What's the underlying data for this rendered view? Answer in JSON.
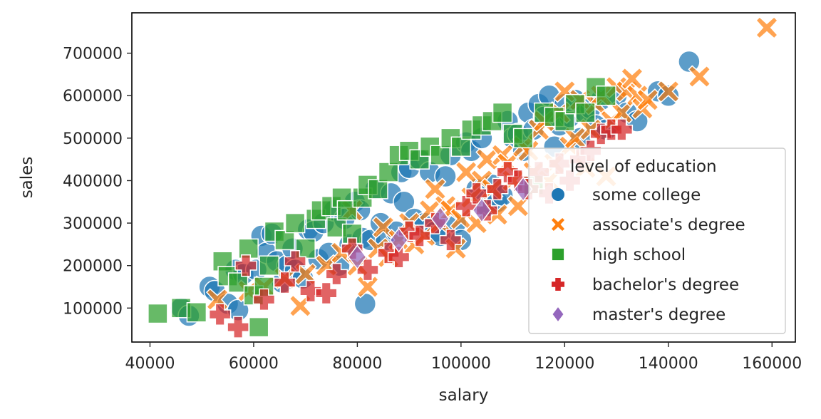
{
  "chart_data": {
    "type": "scatter",
    "xlabel": "salary",
    "ylabel": "sales",
    "xlim": [
      36500,
      164500
    ],
    "ylim": [
      20000,
      795000
    ],
    "xticks": [
      40000,
      60000,
      80000,
      100000,
      120000,
      140000,
      160000
    ],
    "yticks": [
      100000,
      200000,
      300000,
      400000,
      500000,
      600000,
      700000
    ],
    "grid": false,
    "legend": {
      "title": "level of education",
      "placement": "lower-right"
    },
    "series": [
      {
        "name": "some college",
        "color": "#1f77b4",
        "marker": "circle",
        "points": [
          [
            46000,
            100000
          ],
          [
            47500,
            82000
          ],
          [
            51500,
            150000
          ],
          [
            52500,
            140000
          ],
          [
            55000,
            110000
          ],
          [
            56500,
            190000
          ],
          [
            57000,
            95000
          ],
          [
            58000,
            180000
          ],
          [
            60500,
            190000
          ],
          [
            61500,
            270000
          ],
          [
            62500,
            230000
          ],
          [
            63500,
            275000
          ],
          [
            64500,
            210000
          ],
          [
            65500,
            160000
          ],
          [
            66500,
            200000
          ],
          [
            67500,
            240000
          ],
          [
            68000,
            190000
          ],
          [
            69500,
            170000
          ],
          [
            70500,
            285000
          ],
          [
            71500,
            280000
          ],
          [
            72500,
            215000
          ],
          [
            73500,
            300000
          ],
          [
            74500,
            230000
          ],
          [
            75500,
            330000
          ],
          [
            76500,
            200000
          ],
          [
            77500,
            310000
          ],
          [
            78500,
            250000
          ],
          [
            79500,
            350000
          ],
          [
            80500,
            330000
          ],
          [
            81000,
            265000
          ],
          [
            81500,
            110000
          ],
          [
            82500,
            260000
          ],
          [
            83500,
            380000
          ],
          [
            84500,
            300000
          ],
          [
            85500,
            260000
          ],
          [
            86500,
            370000
          ],
          [
            87500,
            280000
          ],
          [
            88500,
            420000
          ],
          [
            89000,
            350000
          ],
          [
            90000,
            430000
          ],
          [
            91000,
            310000
          ],
          [
            92000,
            450000
          ],
          [
            93000,
            300000
          ],
          [
            94000,
            420000
          ],
          [
            95000,
            280000
          ],
          [
            96000,
            270000
          ],
          [
            97000,
            410000
          ],
          [
            98000,
            460000
          ],
          [
            99000,
            300000
          ],
          [
            100000,
            260000
          ],
          [
            101000,
            490000
          ],
          [
            102000,
            470000
          ],
          [
            103000,
            380000
          ],
          [
            104000,
            500000
          ],
          [
            105000,
            340000
          ],
          [
            106000,
            390000
          ],
          [
            107000,
            350000
          ],
          [
            108000,
            365000
          ],
          [
            109000,
            540000
          ],
          [
            110000,
            500000
          ],
          [
            111000,
            510000
          ],
          [
            112000,
            470000
          ],
          [
            113000,
            560000
          ],
          [
            114000,
            520000
          ],
          [
            115000,
            580000
          ],
          [
            116000,
            550000
          ],
          [
            117000,
            600000
          ],
          [
            118000,
            480000
          ],
          [
            119000,
            530000
          ],
          [
            120000,
            580000
          ],
          [
            121000,
            550000
          ],
          [
            122000,
            590000
          ],
          [
            123000,
            500000
          ],
          [
            124000,
            560000
          ],
          [
            125000,
            570000
          ],
          [
            126000,
            530000
          ],
          [
            127000,
            590000
          ],
          [
            128000,
            520000
          ],
          [
            130000,
            600000
          ],
          [
            132000,
            560000
          ],
          [
            134000,
            540000
          ],
          [
            138000,
            610000
          ],
          [
            140000,
            600000
          ],
          [
            144000,
            680000
          ]
        ]
      },
      {
        "name": "associate's degree",
        "color": "#ff7f0e",
        "marker": "x",
        "points": [
          [
            53000,
            120000
          ],
          [
            59000,
            140000
          ],
          [
            62000,
            150000
          ],
          [
            66000,
            170000
          ],
          [
            69000,
            105000
          ],
          [
            70000,
            180000
          ],
          [
            74000,
            200000
          ],
          [
            77000,
            230000
          ],
          [
            79000,
            330000
          ],
          [
            80000,
            200000
          ],
          [
            82000,
            150000
          ],
          [
            84000,
            240000
          ],
          [
            85000,
            290000
          ],
          [
            86000,
            220000
          ],
          [
            88000,
            260000
          ],
          [
            90000,
            300000
          ],
          [
            91000,
            250000
          ],
          [
            93000,
            270000
          ],
          [
            94000,
            330000
          ],
          [
            95000,
            380000
          ],
          [
            96000,
            300000
          ],
          [
            97000,
            340000
          ],
          [
            98000,
            330000
          ],
          [
            99000,
            240000
          ],
          [
            100000,
            310000
          ],
          [
            101000,
            420000
          ],
          [
            102000,
            360000
          ],
          [
            103000,
            300000
          ],
          [
            104000,
            400000
          ],
          [
            105000,
            450000
          ],
          [
            106000,
            380000
          ],
          [
            107000,
            320000
          ],
          [
            108000,
            460000
          ],
          [
            109000,
            440000
          ],
          [
            110000,
            400000
          ],
          [
            111000,
            340000
          ],
          [
            112000,
            480000
          ],
          [
            113000,
            470000
          ],
          [
            114000,
            420000
          ],
          [
            115000,
            520000
          ],
          [
            116000,
            540000
          ],
          [
            117000,
            400000
          ],
          [
            118000,
            440000
          ],
          [
            119000,
            560000
          ],
          [
            120000,
            610000
          ],
          [
            121000,
            480000
          ],
          [
            122000,
            500000
          ],
          [
            123000,
            590000
          ],
          [
            124000,
            430000
          ],
          [
            125000,
            520000
          ],
          [
            126000,
            580000
          ],
          [
            127000,
            600000
          ],
          [
            128000,
            410000
          ],
          [
            129000,
            540000
          ],
          [
            130000,
            620000
          ],
          [
            131000,
            560000
          ],
          [
            132000,
            610000
          ],
          [
            133000,
            640000
          ],
          [
            134000,
            600000
          ],
          [
            135000,
            570000
          ],
          [
            136000,
            590000
          ],
          [
            140000,
            610000
          ],
          [
            146000,
            645000
          ],
          [
            159000,
            760000
          ]
        ]
      },
      {
        "name": "high school",
        "color": "#2ca02c",
        "marker": "square",
        "points": [
          [
            41500,
            87000
          ],
          [
            46000,
            100000
          ],
          [
            49000,
            90000
          ],
          [
            54000,
            210000
          ],
          [
            55000,
            175000
          ],
          [
            57000,
            160000
          ],
          [
            59000,
            240000
          ],
          [
            60000,
            130000
          ],
          [
            61000,
            55000
          ],
          [
            62000,
            150000
          ],
          [
            63000,
            200000
          ],
          [
            64000,
            280000
          ],
          [
            66000,
            260000
          ],
          [
            68000,
            300000
          ],
          [
            70000,
            240000
          ],
          [
            72000,
            310000
          ],
          [
            73000,
            330000
          ],
          [
            75000,
            340000
          ],
          [
            76000,
            290000
          ],
          [
            77000,
            360000
          ],
          [
            78000,
            330000
          ],
          [
            79000,
            275000
          ],
          [
            81000,
            360000
          ],
          [
            82000,
            390000
          ],
          [
            84000,
            380000
          ],
          [
            86000,
            420000
          ],
          [
            88000,
            460000
          ],
          [
            90000,
            470000
          ],
          [
            92000,
            450000
          ],
          [
            94000,
            480000
          ],
          [
            96000,
            460000
          ],
          [
            98000,
            500000
          ],
          [
            100000,
            480000
          ],
          [
            102000,
            520000
          ],
          [
            104000,
            530000
          ],
          [
            106000,
            540000
          ],
          [
            108000,
            560000
          ],
          [
            110000,
            510000
          ],
          [
            112000,
            500000
          ],
          [
            114000,
            390000
          ],
          [
            116000,
            560000
          ],
          [
            118000,
            550000
          ],
          [
            120000,
            540000
          ],
          [
            122000,
            580000
          ],
          [
            124000,
            560000
          ],
          [
            126000,
            620000
          ],
          [
            128000,
            600000
          ]
        ]
      },
      {
        "name": "bachelor's degree",
        "color": "#d62728",
        "marker": "plus",
        "points": [
          [
            53500,
            85000
          ],
          [
            57000,
            55000
          ],
          [
            58500,
            200000
          ],
          [
            62000,
            120000
          ],
          [
            66000,
            160000
          ],
          [
            68000,
            210000
          ],
          [
            71000,
            140000
          ],
          [
            74000,
            135000
          ],
          [
            76000,
            180000
          ],
          [
            79000,
            240000
          ],
          [
            82000,
            190000
          ],
          [
            86000,
            230000
          ],
          [
            88000,
            220000
          ],
          [
            90000,
            280000
          ],
          [
            92000,
            270000
          ],
          [
            95000,
            300000
          ],
          [
            98000,
            260000
          ],
          [
            101000,
            340000
          ],
          [
            103000,
            370000
          ],
          [
            105000,
            330000
          ],
          [
            107000,
            380000
          ],
          [
            109000,
            420000
          ],
          [
            111000,
            400000
          ],
          [
            113000,
            380000
          ],
          [
            115000,
            420000
          ],
          [
            117000,
            370000
          ],
          [
            119000,
            440000
          ],
          [
            121000,
            400000
          ],
          [
            123000,
            450000
          ],
          [
            125000,
            470000
          ],
          [
            127000,
            510000
          ],
          [
            129000,
            520000
          ],
          [
            131000,
            520000
          ]
        ]
      },
      {
        "name": "master's degree",
        "color": "#9467bd",
        "marker": "diamond",
        "points": [
          [
            80000,
            220000
          ],
          [
            88000,
            260000
          ],
          [
            96000,
            310000
          ],
          [
            104000,
            330000
          ],
          [
            112000,
            380000
          ]
        ]
      }
    ]
  }
}
